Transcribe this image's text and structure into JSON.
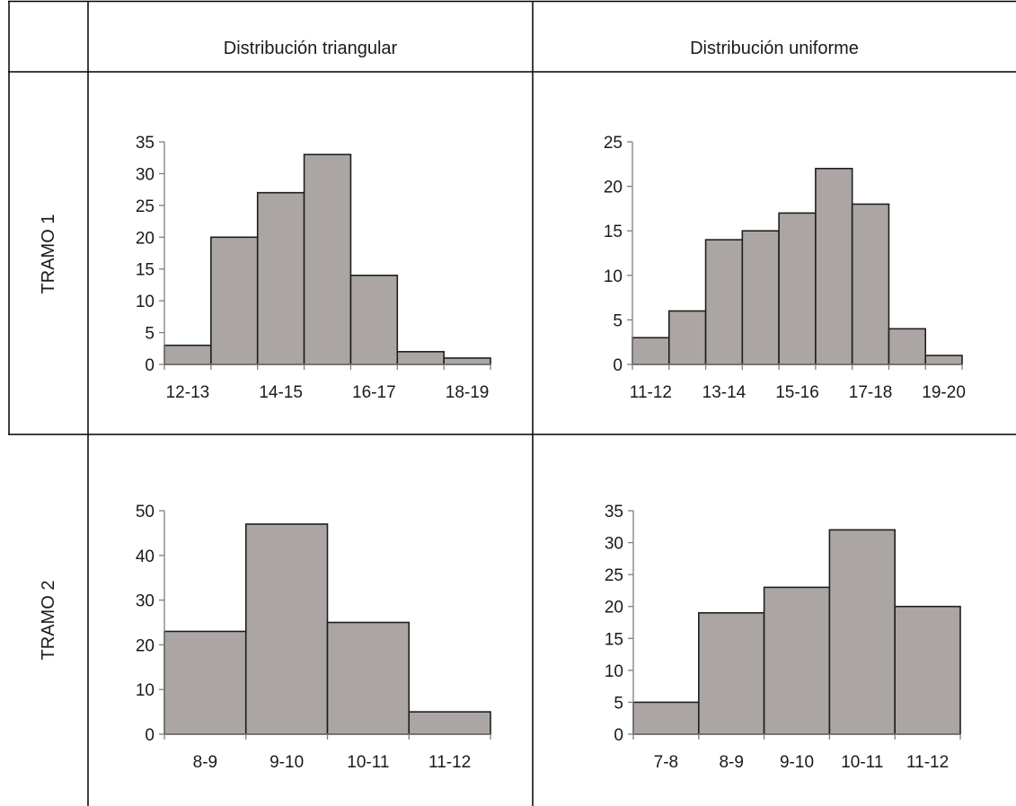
{
  "table": {
    "columns": [
      "Distribución triangular",
      "Distribución uniforme"
    ],
    "rows": [
      "TRAMO 1",
      "TRAMO 2"
    ]
  },
  "colors": {
    "bar_fill": "#aba6a4",
    "bar_stroke": "#1f1f1f",
    "axis": "#7f7f7f",
    "border": "#000000"
  },
  "chart_data": [
    {
      "type": "bar",
      "row": "TRAMO 1",
      "column": "Distribución triangular",
      "categories": [
        "12-13",
        "13-14",
        "14-15",
        "15-16",
        "16-17",
        "17-18",
        "18-19"
      ],
      "tick_labels_shown": [
        "12-13",
        "14-15",
        "16-17",
        "18-19"
      ],
      "values": [
        3,
        20,
        27,
        33,
        14,
        2,
        1
      ],
      "ylim": [
        0,
        35
      ],
      "yticks": [
        0,
        5,
        10,
        15,
        20,
        25,
        30,
        35
      ],
      "grid": false
    },
    {
      "type": "bar",
      "row": "TRAMO 1",
      "column": "Distribución uniforme",
      "categories": [
        "11-12",
        "12-13",
        "13-14",
        "14-15",
        "15-16",
        "16-17",
        "17-18",
        "18-19",
        "19-20"
      ],
      "tick_labels_shown": [
        "11-12",
        "13-14",
        "15-16",
        "17-18",
        "19-20"
      ],
      "values": [
        3,
        6,
        14,
        15,
        17,
        22,
        18,
        4,
        1
      ],
      "ylim": [
        0,
        25
      ],
      "yticks": [
        0,
        5,
        10,
        15,
        20,
        25
      ],
      "grid": false
    },
    {
      "type": "bar",
      "row": "TRAMO 2",
      "column": "Distribución triangular",
      "categories": [
        "8-9",
        "9-10",
        "10-11",
        "11-12"
      ],
      "tick_labels_shown": [
        "8-9",
        "9-10",
        "10-11",
        "11-12"
      ],
      "values": [
        23,
        47,
        25,
        5
      ],
      "ylim": [
        0,
        50
      ],
      "yticks": [
        0,
        10,
        20,
        30,
        40,
        50
      ],
      "grid": false
    },
    {
      "type": "bar",
      "row": "TRAMO 2",
      "column": "Distribución uniforme",
      "categories": [
        "7-8",
        "8-9",
        "9-10",
        "10-11",
        "11-12"
      ],
      "tick_labels_shown": [
        "7-8",
        "8-9",
        "9-10",
        "10-11",
        "11-12"
      ],
      "values": [
        5,
        19,
        23,
        32,
        20
      ],
      "ylim": [
        0,
        35
      ],
      "yticks": [
        0,
        5,
        10,
        15,
        20,
        25,
        30,
        35
      ],
      "grid": false
    }
  ]
}
